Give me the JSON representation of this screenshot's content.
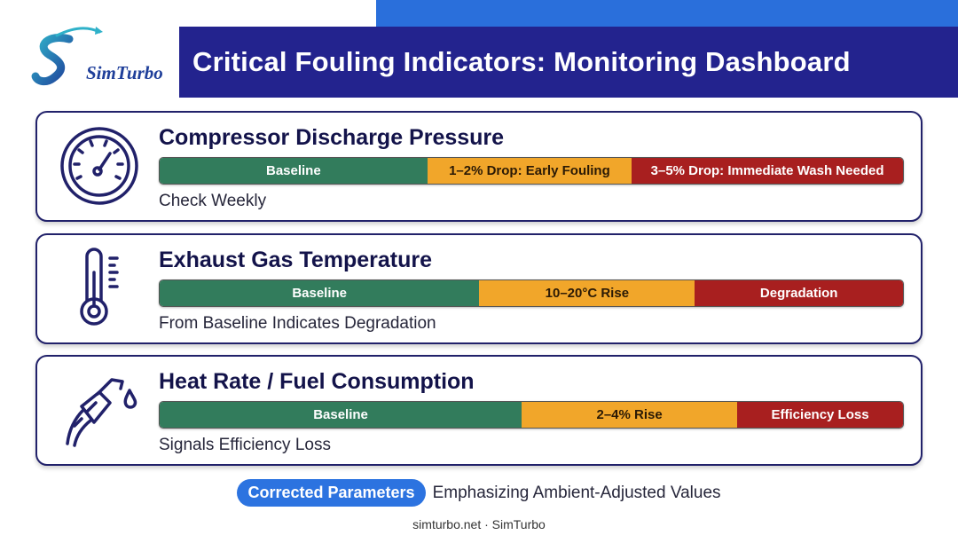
{
  "brand": {
    "name": "SimTurbo",
    "logo_text": "SimTurbo"
  },
  "title": "Critical Fouling Indicators: Monitoring Dashboard",
  "indicators": [
    {
      "icon": "pressure-gauge-icon",
      "heading": "Compressor Discharge Pressure",
      "segments": [
        {
          "label": "Baseline",
          "share": 0.36,
          "color": "#327c5c"
        },
        {
          "label": "1–2% Drop: Early Fouling",
          "share": 0.275,
          "color": "#f1a62a"
        },
        {
          "label": "3–5% Drop: Immediate Wash Needed",
          "share": 0.365,
          "color": "#a81f1f"
        }
      ],
      "note": "Check Weekly"
    },
    {
      "icon": "thermometer-icon",
      "heading": "Exhaust Gas Temperature",
      "segments": [
        {
          "label": "Baseline",
          "share": 0.43,
          "color": "#327c5c"
        },
        {
          "label": "10–20°C Rise",
          "share": 0.29,
          "color": "#f1a62a"
        },
        {
          "label": "Degradation",
          "share": 0.28,
          "color": "#a81f1f"
        }
      ],
      "note": "From Baseline Indicates Degradation"
    },
    {
      "icon": "fuel-nozzle-icon",
      "heading": "Heat Rate / Fuel Consumption",
      "segments": [
        {
          "label": "Baseline",
          "share": 0.487,
          "color": "#327c5c"
        },
        {
          "label": "2–4% Rise",
          "share": 0.29,
          "color": "#f1a62a"
        },
        {
          "label": "Efficiency Loss",
          "share": 0.223,
          "color": "#a81f1f"
        }
      ],
      "note": "Signals Efficiency Loss"
    }
  ],
  "footer": {
    "pill": "Corrected Parameters",
    "emphasis": "Emphasizing Ambient-Adjusted Values",
    "credit": "simturbo.net · SimTurbo"
  }
}
